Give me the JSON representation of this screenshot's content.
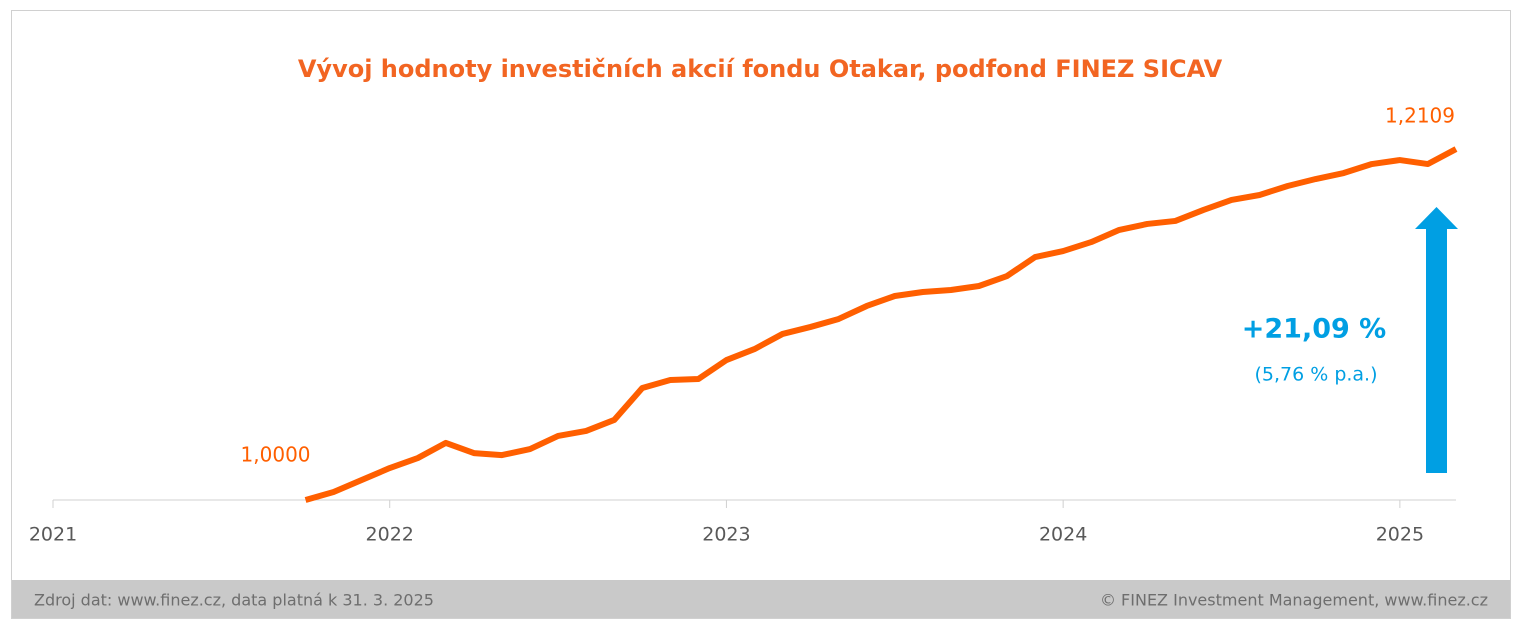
{
  "chart_data": {
    "type": "line",
    "title": "Vývoj hodnoty investičních akcií fondu Otakar, podfond FINEZ SICAV",
    "x": [
      2021.75,
      2021.8333,
      2021.9167,
      2022.0,
      2022.0833,
      2022.1667,
      2022.25,
      2022.3333,
      2022.4167,
      2022.5,
      2022.5833,
      2022.6667,
      2022.75,
      2022.8333,
      2022.9167,
      2023.0,
      2023.0833,
      2023.1667,
      2023.25,
      2023.3333,
      2023.4167,
      2023.5,
      2023.5833,
      2023.6667,
      2023.75,
      2023.8333,
      2023.9167,
      2024.0,
      2024.0833,
      2024.1667,
      2024.25,
      2024.3333,
      2024.4167,
      2024.5,
      2024.5833,
      2024.6667,
      2024.75,
      2024.8333,
      2024.9167,
      2025.0,
      2025.0833,
      2025.1667
    ],
    "series": [
      {
        "color": "#ff5f00",
        "values": [
          1.0,
          1.0048,
          1.012,
          1.0192,
          1.0252,
          1.0343,
          1.0282,
          1.027,
          1.0306,
          1.0385,
          1.0415,
          1.0481,
          1.0673,
          1.0721,
          1.0727,
          1.0841,
          1.0907,
          1.0998,
          1.104,
          1.1088,
          1.1166,
          1.1226,
          1.125,
          1.1262,
          1.1286,
          1.1346,
          1.146,
          1.1496,
          1.155,
          1.1623,
          1.1659,
          1.1677,
          1.1743,
          1.1803,
          1.1833,
          1.1887,
          1.1929,
          1.1965,
          1.2019,
          1.2043,
          1.2019,
          1.2109
        ],
        "value_labels": [
          "1,0000",
          null,
          null,
          null,
          null,
          null,
          null,
          null,
          null,
          null,
          null,
          null,
          null,
          null,
          null,
          null,
          null,
          null,
          null,
          null,
          null,
          null,
          null,
          null,
          null,
          null,
          null,
          null,
          null,
          null,
          null,
          null,
          null,
          null,
          null,
          null,
          null,
          null,
          null,
          null,
          null,
          "1,2109"
        ]
      }
    ],
    "xlim": [
      2021,
      2025.1667
    ],
    "xticks": [
      2021,
      2022,
      2023,
      2024,
      2025
    ],
    "ylim": [
      1.0,
      1.25
    ],
    "annotations": [
      "+21,09 %",
      "(5,76 % p.a.)"
    ],
    "footer": {
      "source": "Zdroj dat: www.finez.cz, data platná k 31. 3. 2025",
      "copyright": "© FINEZ Investment Management, www.finez.cz"
    }
  }
}
